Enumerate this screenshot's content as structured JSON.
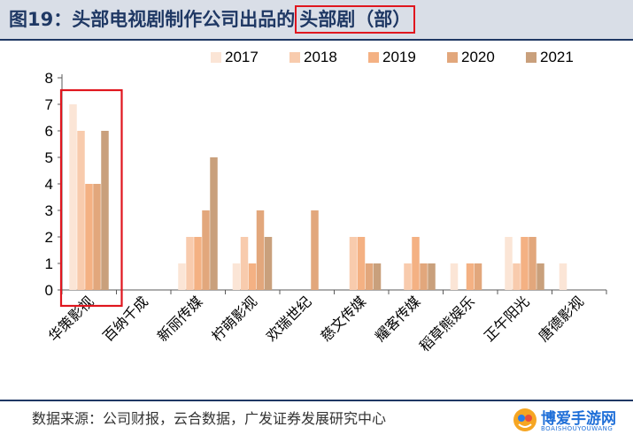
{
  "header": {
    "title_main": "图19：头部电视剧制作公司出品的",
    "title_boxed": "头部剧（部）"
  },
  "footer": {
    "source": "数据来源：公司财报，云合数据，广发证券发展研究中心"
  },
  "logo": {
    "text": "博爱手游网",
    "sub": "BOAISHOUYOUWANG"
  },
  "colors": {
    "title": "#1f3864",
    "highlight_box": "#e0161e",
    "series": [
      "#fbe5d6",
      "#f8cbad",
      "#f4b183",
      "#e2a77c",
      "#c9a07c"
    ]
  },
  "chart_data": {
    "type": "bar",
    "title": "",
    "xlabel": "",
    "ylabel": "",
    "ylim": [
      0,
      8
    ],
    "yticks": [
      0,
      1,
      2,
      3,
      4,
      5,
      6,
      7,
      8
    ],
    "grid": false,
    "legend_position": "top-right",
    "categories": [
      "华策影视",
      "百纳千成",
      "新丽传媒",
      "柠萌影视",
      "欢瑞世纪",
      "慈文传媒",
      "耀客传媒",
      "稻草熊娱乐",
      "正午阳光",
      "唐德影视"
    ],
    "series": [
      {
        "name": "2017",
        "values": [
          7,
          0,
          1,
          1,
          0,
          0,
          0,
          1,
          2,
          1
        ]
      },
      {
        "name": "2018",
        "values": [
          6,
          0,
          2,
          2,
          0,
          2,
          1,
          0,
          1,
          0
        ]
      },
      {
        "name": "2019",
        "values": [
          4,
          0,
          2,
          1,
          0,
          2,
          2,
          1,
          2,
          0
        ]
      },
      {
        "name": "2020",
        "values": [
          4,
          0,
          3,
          3,
          3,
          1,
          1,
          1,
          2,
          0
        ]
      },
      {
        "name": "2021",
        "values": [
          6,
          0,
          5,
          2,
          0,
          1,
          1,
          0,
          1,
          0
        ]
      }
    ],
    "highlight_category": "华策影视"
  }
}
